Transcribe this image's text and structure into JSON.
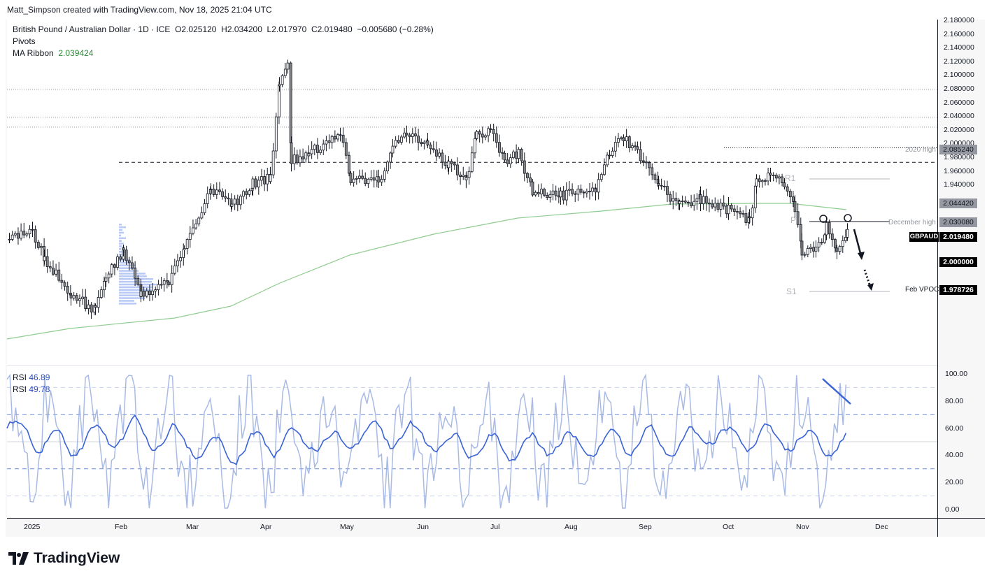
{
  "attribution": "Matt_Simpson created with TradingView.com, Nov 18, 2025 21:04 UTC",
  "legend": {
    "symbol_line": "British Pound / Australian Dollar · 1D · ICE",
    "open": "O2.025120",
    "high": "H2.034200",
    "low": "L2.017970",
    "close": "C2.019480",
    "change": "−0.005680 (−0.28%)",
    "pivots": "Pivots",
    "ma_label": "MA Ribbon",
    "ma_value": "2.039424"
  },
  "rsi_legend": {
    "rsi1_label": "RSI",
    "rsi1_value": "46.89",
    "rsi2_label": "RSI",
    "rsi2_value": "49.78"
  },
  "price_axis": [
    "2.180000",
    "2.160000",
    "2.140000",
    "2.120000",
    "2.100000",
    "2.080000",
    "2.060000",
    "2.040000",
    "2.020000",
    "2.000000",
    "1.980000",
    "1.960000",
    "1.940000"
  ],
  "rsi_axis": [
    "100.00",
    "80.00",
    "60.00",
    "40.00",
    "20.00",
    "0.00"
  ],
  "time_axis": [
    "2025",
    "Feb",
    "Mar",
    "Apr",
    "May",
    "Jun",
    "Jul",
    "Aug",
    "Sep",
    "Oct",
    "Nov",
    "Dec"
  ],
  "tags": {
    "high2020": {
      "label": "2020 high",
      "value": "2.085240"
    },
    "level_2044": {
      "value": "2.044420"
    },
    "dec_high": {
      "label": "December high",
      "value": "2.030080"
    },
    "symbol": {
      "label": "GBPAUD",
      "value": "2.019480"
    },
    "round": {
      "value": "2.000000"
    },
    "vpoc": {
      "label": "Feb VPOC",
      "value": "1.978726"
    }
  },
  "pivot_labels": {
    "r1": "R1",
    "p": "P",
    "s1": "S1"
  },
  "brand": "TradingView",
  "colors": {
    "ma": "#8fcc8f",
    "rsi_fast": "#9aaee0",
    "rsi_slow": "#3a63d6",
    "up_body": "#ffffff",
    "down_body": "#8a8a8a",
    "volume_profile": "#b8c9f5"
  },
  "chart_data": [
    {
      "type": "candlestick",
      "title": "British Pound / Australian Dollar · 1D · ICE",
      "xlabel": "",
      "ylabel": "",
      "ylim": [
        1.925,
        2.185
      ],
      "x": [
        "2025",
        "Feb",
        "Mar",
        "Apr",
        "May",
        "Jun",
        "Jul",
        "Aug",
        "Sep",
        "Oct",
        "Nov",
        "Dec"
      ],
      "approx_monthly_close": [
        2.005,
        1.972,
        2.04,
        2.082,
        2.06,
        2.085,
        2.068,
        2.064,
        2.04,
        2.045,
        2.006,
        2.019
      ],
      "last": {
        "open": 2.02512,
        "high": 2.0342,
        "low": 2.01797,
        "close": 2.01948
      },
      "ma_ribbon_value": 2.039424,
      "levels": [
        {
          "name": "2020 high",
          "value": 2.08524,
          "style": "dotted"
        },
        {
          "name": "2.044420",
          "value": 2.04442,
          "style": "dotted"
        },
        {
          "name": "December high",
          "value": 2.03008,
          "style": "dotted"
        },
        {
          "name": "2.000000",
          "value": 2.0,
          "style": "dotted"
        },
        {
          "name": "Feb VPOC",
          "value": 1.978726,
          "style": "dashed"
        }
      ],
      "annotations": [
        "R1",
        "P",
        "S1",
        "double-top circles",
        "down arrow",
        "dotted down arrow"
      ]
    },
    {
      "type": "line",
      "title": "RSI",
      "ylim": [
        0,
        100
      ],
      "series": [
        {
          "name": "RSI",
          "last": 46.89
        },
        {
          "name": "RSI",
          "last": 49.78
        }
      ],
      "bands": [
        10,
        30,
        50,
        70,
        90
      ],
      "annotations": [
        "bearish divergence line"
      ]
    }
  ]
}
